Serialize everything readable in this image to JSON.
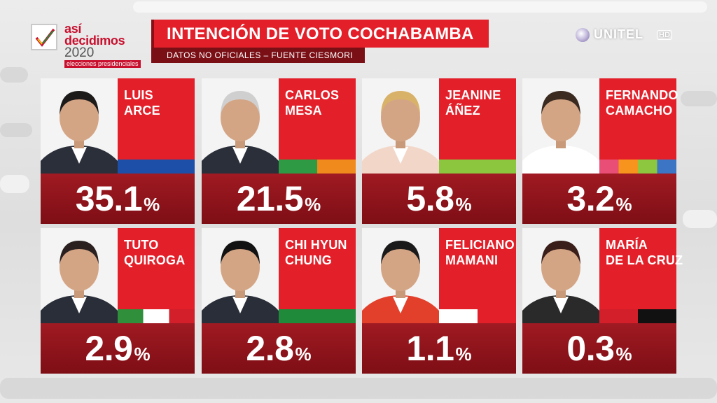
{
  "logo": {
    "line1": "así",
    "line2": "decidimos",
    "line3": "2020",
    "tagline": "elecciones presidenciales",
    "check_icon": "check-icon"
  },
  "header": {
    "title": "INTENCIÓN DE VOTO COCHABAMBA",
    "subtitle": "DATOS NO OFICIALES – FUENTE CIESMORI"
  },
  "channel": {
    "name": "UNITEL",
    "badge": "HD"
  },
  "colors": {
    "card_red": "#e3202a",
    "pct_dark_red": "#8c0d14"
  },
  "percent_symbol": "%",
  "candidates": [
    {
      "first": "LUIS",
      "last": "ARCE",
      "value": "35.1",
      "party_colors": [
        "#1e4fa8"
      ]
    },
    {
      "first": "CARLOS",
      "last": "MESA",
      "value": "21.5",
      "party_colors": [
        "#2e9a44",
        "#f08a1c"
      ]
    },
    {
      "first": "JEANINE",
      "last": "ÁÑEZ",
      "value": "5.8",
      "party_colors": [
        "#8cc63f"
      ]
    },
    {
      "first": "FERNANDO",
      "last": "CAMACHO",
      "value": "3.2",
      "party_colors": [
        "#e94e77",
        "#f7941d",
        "#8dc63f",
        "#3b75c4"
      ]
    },
    {
      "first": "TUTO",
      "last": "QUIROGA",
      "value": "2.9",
      "party_colors": [
        "#2f8f3a",
        "#ffffff",
        "#d21f2a"
      ]
    },
    {
      "first": "CHI HYUN",
      "last": "CHUNG",
      "value": "2.8",
      "party_colors": [
        "#1e8a3a"
      ]
    },
    {
      "first": "FELICIANO",
      "last": "MAMANI",
      "value": "1.1",
      "party_colors": [
        "#ffffff",
        "#e3202a"
      ]
    },
    {
      "first": "MARÍA",
      "last": "DE LA CRUZ",
      "value": "0.3",
      "party_colors": [
        "#d21f2a",
        "#111111"
      ]
    }
  ]
}
